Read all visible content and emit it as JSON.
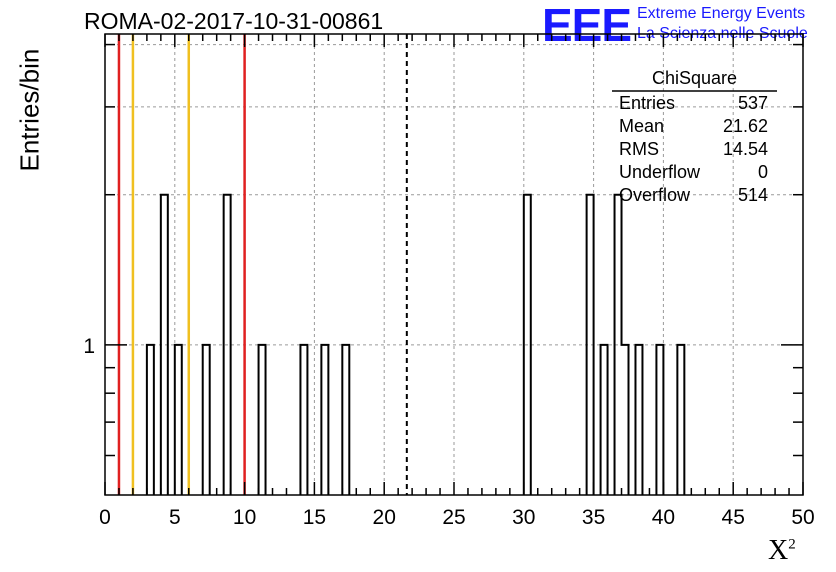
{
  "chart_data": {
    "type": "bar",
    "title": "ROMA-02-2017-10-31-00861",
    "xlabel": "X",
    "xlabel_superscript": "2",
    "ylabel": "Entries/bin",
    "xlim": [
      0,
      50
    ],
    "bin_width": 0.5,
    "ylim_log": [
      0.5,
      4.2
    ],
    "log_y": true,
    "grid": true,
    "x_ticks": [
      "0",
      "5",
      "10",
      "15",
      "20",
      "25",
      "30",
      "35",
      "40",
      "45",
      "50"
    ],
    "y_tick_labels": [
      "1"
    ],
    "bins": [
      {
        "x": 3.0,
        "value": 1
      },
      {
        "x": 4.0,
        "value": 2
      },
      {
        "x": 5.0,
        "value": 1
      },
      {
        "x": 7.0,
        "value": 1
      },
      {
        "x": 8.5,
        "value": 2
      },
      {
        "x": 11.0,
        "value": 1
      },
      {
        "x": 14.0,
        "value": 1
      },
      {
        "x": 15.5,
        "value": 1
      },
      {
        "x": 17.0,
        "value": 1
      },
      {
        "x": 30.0,
        "value": 2
      },
      {
        "x": 34.5,
        "value": 2
      },
      {
        "x": 35.5,
        "value": 1
      },
      {
        "x": 36.5,
        "value": 2
      },
      {
        "x": 37.0,
        "value": 1
      },
      {
        "x": 38.0,
        "value": 1
      },
      {
        "x": 39.5,
        "value": 1
      },
      {
        "x": 41.0,
        "value": 1
      }
    ],
    "vertical_lines": [
      {
        "x": 1.0,
        "color": "#e02020",
        "style": "solid"
      },
      {
        "x": 2.0,
        "color": "#f0c020",
        "style": "solid"
      },
      {
        "x": 6.0,
        "color": "#f0c020",
        "style": "solid"
      },
      {
        "x": 10.0,
        "color": "#e02020",
        "style": "solid"
      },
      {
        "x": 21.62,
        "color": "#000000",
        "style": "dashed"
      }
    ],
    "stats_box": {
      "title": "ChiSquare",
      "rows": [
        {
          "label": "Entries",
          "value": "537"
        },
        {
          "label": "Mean",
          "value": "21.62"
        },
        {
          "label": "RMS",
          "value": "14.54"
        },
        {
          "label": "Underflow",
          "value": "0"
        },
        {
          "label": "Overflow",
          "value": "514"
        }
      ]
    }
  },
  "logo": {
    "mark": "EEE",
    "line1": "Extreme Energy Events",
    "line2": "La Scienza nelle Scuole",
    "color": "#1a1aff"
  }
}
